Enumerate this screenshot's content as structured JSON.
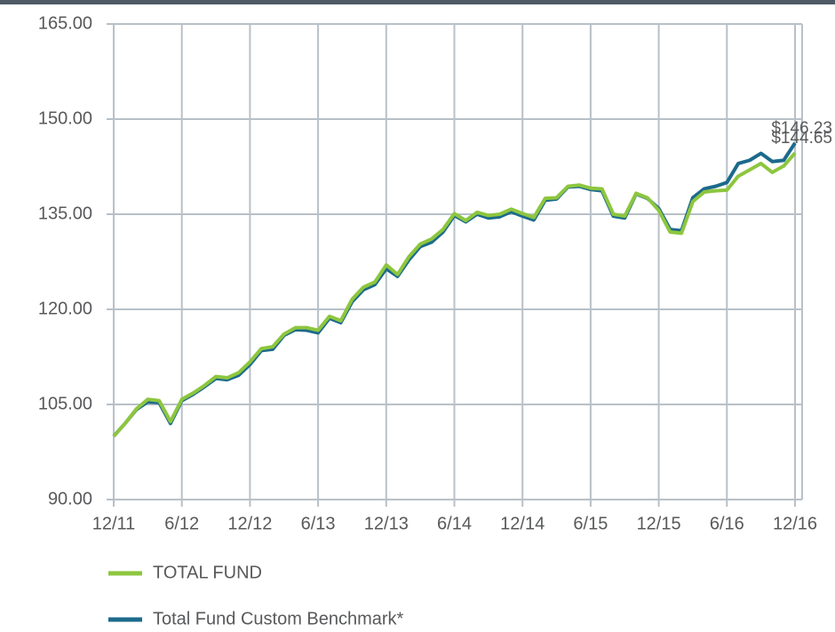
{
  "chart_data": {
    "type": "line",
    "categories": [
      "12/11",
      null,
      null,
      null,
      null,
      null,
      "6/12",
      null,
      null,
      null,
      null,
      null,
      "12/12",
      null,
      null,
      null,
      null,
      null,
      "6/13",
      null,
      null,
      null,
      null,
      null,
      "12/13",
      null,
      null,
      null,
      null,
      null,
      "6/14",
      null,
      null,
      null,
      null,
      null,
      "12/14",
      null,
      null,
      null,
      null,
      null,
      "6/15",
      null,
      null,
      null,
      null,
      null,
      "12/15",
      null,
      null,
      null,
      null,
      null,
      "6/16",
      null,
      null,
      null,
      null,
      null,
      "12/16"
    ],
    "series": [
      {
        "name": "TOTAL FUND",
        "color": "#8dc63f",
        "values": [
          100.0,
          102.0,
          104.3,
          105.8,
          105.6,
          102.3,
          105.8,
          106.8,
          108.0,
          109.4,
          109.2,
          110.0,
          111.7,
          113.8,
          114.1,
          116.1,
          117.1,
          117.1,
          116.7,
          118.9,
          118.2,
          121.6,
          123.5,
          124.3,
          127.0,
          125.5,
          128.3,
          130.3,
          131.1,
          132.6,
          135.1,
          134.0,
          135.3,
          134.8,
          135.0,
          135.8,
          135.1,
          134.5,
          137.5,
          137.6,
          139.4,
          139.6,
          139.1,
          139.0,
          135.0,
          134.7,
          138.3,
          137.6,
          135.6,
          132.2,
          132.0,
          137.0,
          138.5,
          138.7,
          138.8,
          141.0,
          142.0,
          143.0,
          141.6,
          142.6,
          144.65
        ],
        "value_labels": [
          null,
          null,
          null,
          null,
          null,
          null,
          null,
          null,
          null,
          null,
          null,
          null,
          null,
          null,
          null,
          null,
          null,
          null,
          null,
          null,
          null,
          null,
          null,
          null,
          null,
          null,
          null,
          null,
          null,
          null,
          null,
          null,
          null,
          null,
          null,
          null,
          null,
          null,
          null,
          null,
          null,
          null,
          null,
          null,
          null,
          null,
          null,
          null,
          null,
          null,
          null,
          null,
          null,
          null,
          null,
          null,
          null,
          null,
          null,
          null,
          "$144.65"
        ]
      },
      {
        "name": "Total Fund Custom Benchmark*",
        "color": "#1b6a8c",
        "values": [
          100.0,
          102.0,
          104.2,
          105.4,
          105.3,
          102.0,
          105.6,
          106.6,
          107.8,
          109.1,
          108.9,
          109.6,
          111.3,
          113.5,
          113.7,
          115.9,
          116.8,
          116.7,
          116.3,
          118.6,
          117.9,
          121.2,
          123.1,
          123.9,
          126.4,
          125.2,
          127.8,
          129.9,
          130.6,
          132.2,
          134.8,
          133.8,
          135.0,
          134.4,
          134.6,
          135.4,
          134.7,
          134.1,
          137.2,
          137.4,
          139.3,
          139.4,
          138.9,
          138.7,
          134.7,
          134.4,
          138.2,
          137.5,
          135.9,
          132.6,
          132.4,
          137.6,
          139.0,
          139.4,
          140.0,
          143.0,
          143.5,
          144.6,
          143.3,
          143.5,
          146.23
        ],
        "value_labels": [
          null,
          null,
          null,
          null,
          null,
          null,
          null,
          null,
          null,
          null,
          null,
          null,
          null,
          null,
          null,
          null,
          null,
          null,
          null,
          null,
          null,
          null,
          null,
          null,
          null,
          null,
          null,
          null,
          null,
          null,
          null,
          null,
          null,
          null,
          null,
          null,
          null,
          null,
          null,
          null,
          null,
          null,
          null,
          null,
          null,
          null,
          null,
          null,
          null,
          null,
          null,
          null,
          null,
          null,
          null,
          null,
          null,
          null,
          null,
          null,
          "$146.23"
        ]
      }
    ],
    "ylim": [
      90,
      165
    ],
    "yticks": [
      {
        "value": 90,
        "label": "90.00"
      },
      {
        "value": 105,
        "label": "105.00"
      },
      {
        "value": 120,
        "label": "120.00"
      },
      {
        "value": 135,
        "label": "135.00"
      },
      {
        "value": 150,
        "label": "150.00"
      },
      {
        "value": 165,
        "label": "165.00"
      }
    ],
    "grid": true,
    "legend": "bottom"
  }
}
